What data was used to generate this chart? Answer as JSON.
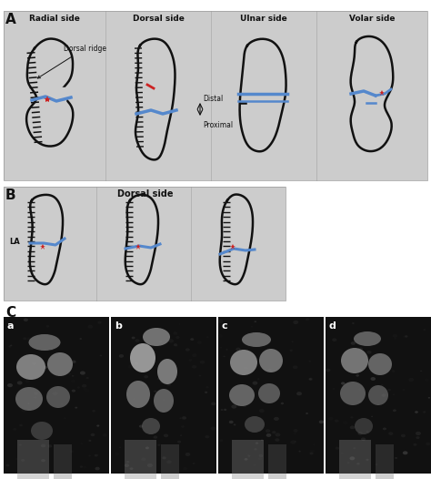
{
  "fig_width": 4.74,
  "fig_height": 5.26,
  "dpi": 100,
  "bg_color": "#ffffff",
  "panel_bg_A": "#cccccc",
  "panel_bg_B": "#cccccc",
  "label_A": "A",
  "label_B": "B",
  "label_C": "C",
  "titles_A": [
    "Radial side",
    "Dorsal side",
    "Ulnar side",
    "Volar side"
  ],
  "title_B": "Dorsal side",
  "label_LA": "LA",
  "label_distal": "Distal",
  "label_proximal": "Proximal",
  "xray_labels": [
    "a",
    "b",
    "c",
    "d"
  ],
  "blue_color": "#5588cc",
  "red_color": "#cc2222",
  "black_color": "#111111"
}
